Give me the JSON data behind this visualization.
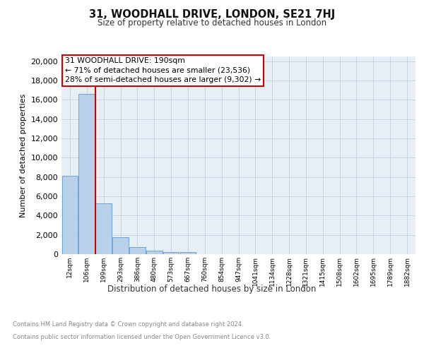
{
  "title": "31, WOODHALL DRIVE, LONDON, SE21 7HJ",
  "subtitle": "Size of property relative to detached houses in London",
  "xlabel": "Distribution of detached houses by size in London",
  "ylabel": "Number of detached properties",
  "property_label": "31 WOODHALL DRIVE: 190sqm",
  "annotation_line1": "← 71% of detached houses are smaller (23,536)",
  "annotation_line2": "28% of semi-detached houses are larger (9,302) →",
  "bar_labels": [
    "12sqm",
    "106sqm",
    "199sqm",
    "293sqm",
    "386sqm",
    "480sqm",
    "573sqm",
    "667sqm",
    "760sqm",
    "854sqm",
    "947sqm",
    "1041sqm",
    "1134sqm",
    "1228sqm",
    "1321sqm",
    "1415sqm",
    "1508sqm",
    "1602sqm",
    "1695sqm",
    "1789sqm",
    "1882sqm"
  ],
  "bar_values": [
    8100,
    16600,
    5300,
    1750,
    750,
    330,
    250,
    200,
    0,
    0,
    0,
    0,
    0,
    0,
    0,
    0,
    0,
    0,
    0,
    0,
    0
  ],
  "bar_color": "#b8d0ea",
  "bar_edge_color": "#6699cc",
  "vline_color": "#cc0000",
  "annotation_box_color": "#cc0000",
  "ylim": [
    0,
    20500
  ],
  "yticks": [
    0,
    2000,
    4000,
    6000,
    8000,
    10000,
    12000,
    14000,
    16000,
    18000,
    20000
  ],
  "grid_color": "#c8d4e4",
  "bg_color": "#e8eef6",
  "footer_line1": "Contains HM Land Registry data © Crown copyright and database right 2024.",
  "footer_line2": "Contains public sector information licensed under the Open Government Licence v3.0."
}
